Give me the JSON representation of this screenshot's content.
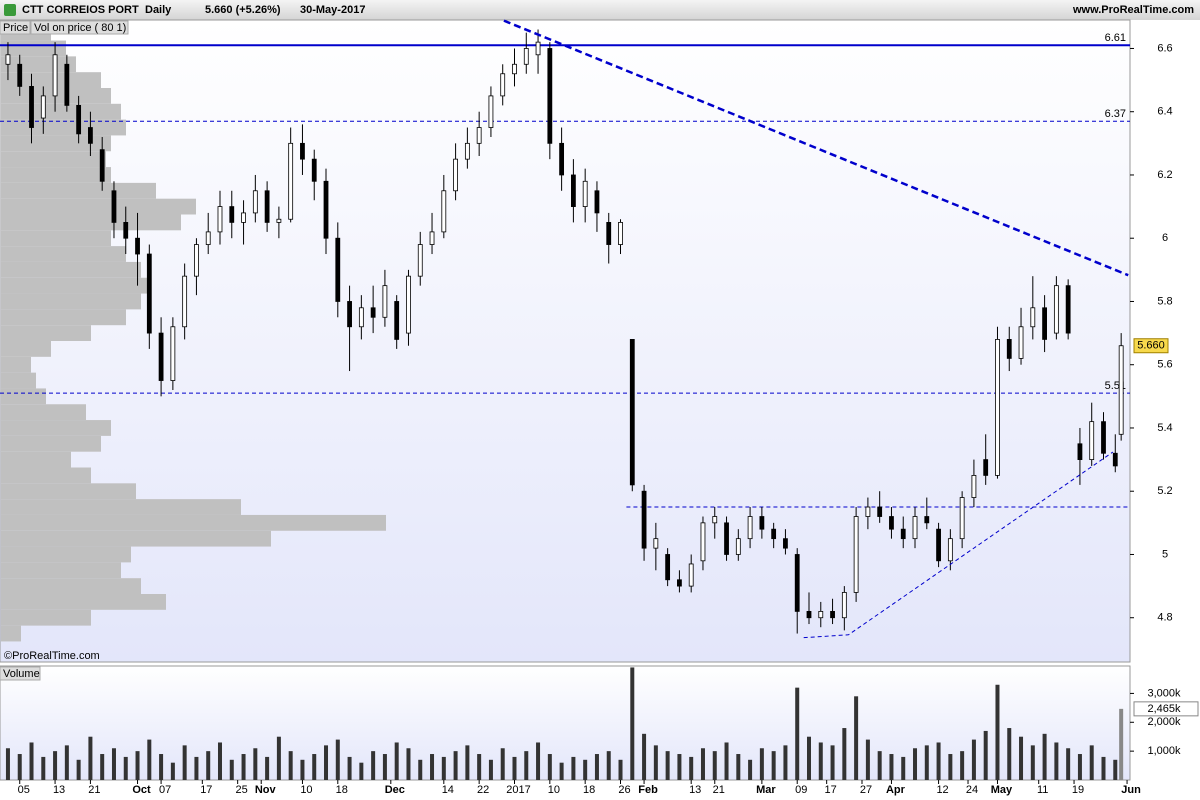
{
  "chart_data": {
    "type": "candlestick",
    "title": "CTT CORREIOS PORT",
    "period": "Daily",
    "change": "5.660 (+5.26%)",
    "date": "30-May-2017",
    "source": "www.ProRealTime.com",
    "panel_label": "Price",
    "copyright": "©ProRealTime.com",
    "xlim": [
      -1.35,
      190.5
    ],
    "xticks": [
      {
        "value": 2,
        "label": "05"
      },
      {
        "value": 8,
        "label": "13"
      },
      {
        "value": 14,
        "label": "21"
      },
      {
        "value": 22,
        "label": "Oct"
      },
      {
        "value": 26,
        "label": "07"
      },
      {
        "value": 33,
        "label": "17"
      },
      {
        "value": 39,
        "label": "25"
      },
      {
        "value": 43,
        "label": "Nov"
      },
      {
        "value": 50,
        "label": "10"
      },
      {
        "value": 56,
        "label": "18"
      },
      {
        "value": 65,
        "label": "Dec"
      },
      {
        "value": 74,
        "label": "14"
      },
      {
        "value": 80,
        "label": "22"
      },
      {
        "value": 86,
        "label": "2017"
      },
      {
        "value": 92,
        "label": "10"
      },
      {
        "value": 98,
        "label": "18"
      },
      {
        "value": 104,
        "label": "26"
      },
      {
        "value": 108,
        "label": "Feb"
      },
      {
        "value": 116,
        "label": "13"
      },
      {
        "value": 120,
        "label": "21"
      },
      {
        "value": 128,
        "label": "Mar"
      },
      {
        "value": 134,
        "label": "09"
      },
      {
        "value": 139,
        "label": "17"
      },
      {
        "value": 145,
        "label": "27"
      },
      {
        "value": 150,
        "label": "Apr"
      },
      {
        "value": 158,
        "label": "12"
      },
      {
        "value": 163,
        "label": "24"
      },
      {
        "value": 168,
        "label": "May"
      },
      {
        "value": 175,
        "label": "11"
      },
      {
        "value": 181,
        "label": "19"
      },
      {
        "value": 190,
        "label": "Jun"
      }
    ],
    "ylim": [
      4.66,
      6.69
    ],
    "yticks": [
      4.8,
      5,
      5.2,
      5.4,
      5.6,
      5.8,
      6,
      6.2,
      6.4,
      6.6
    ],
    "up_color": "#ffffff",
    "down_color": "#000000",
    "candles": [
      [
        0,
        6.55,
        6.62,
        6.5,
        6.58
      ],
      [
        2,
        6.55,
        6.58,
        6.45,
        6.48
      ],
      [
        4,
        6.48,
        6.52,
        6.3,
        6.35
      ],
      [
        6,
        6.38,
        6.48,
        6.33,
        6.45
      ],
      [
        8,
        6.45,
        6.62,
        6.4,
        6.58
      ],
      [
        10,
        6.55,
        6.58,
        6.4,
        6.42
      ],
      [
        12,
        6.42,
        6.45,
        6.3,
        6.33
      ],
      [
        14,
        6.35,
        6.4,
        6.26,
        6.3
      ],
      [
        16,
        6.28,
        6.32,
        6.15,
        6.18
      ],
      [
        18,
        6.15,
        6.18,
        6.0,
        6.05
      ],
      [
        20,
        6.05,
        6.1,
        5.95,
        6.0
      ],
      [
        22,
        6.0,
        6.08,
        5.85,
        5.95
      ],
      [
        24,
        5.95,
        5.98,
        5.65,
        5.7
      ],
      [
        26,
        5.7,
        5.75,
        5.5,
        5.55
      ],
      [
        28,
        5.55,
        5.75,
        5.52,
        5.72
      ],
      [
        30,
        5.72,
        5.92,
        5.68,
        5.88
      ],
      [
        32,
        5.88,
        6.0,
        5.82,
        5.98
      ],
      [
        34,
        5.98,
        6.08,
        5.95,
        6.02
      ],
      [
        36,
        6.02,
        6.15,
        5.98,
        6.1
      ],
      [
        38,
        6.1,
        6.15,
        6.0,
        6.05
      ],
      [
        40,
        6.05,
        6.12,
        5.98,
        6.08
      ],
      [
        42,
        6.08,
        6.2,
        6.05,
        6.15
      ],
      [
        44,
        6.15,
        6.18,
        6.02,
        6.05
      ],
      [
        46,
        6.05,
        6.1,
        6.0,
        6.06
      ],
      [
        48,
        6.06,
        6.35,
        6.05,
        6.3
      ],
      [
        50,
        6.3,
        6.36,
        6.2,
        6.25
      ],
      [
        52,
        6.25,
        6.28,
        6.12,
        6.18
      ],
      [
        54,
        6.18,
        6.22,
        5.95,
        6.0
      ],
      [
        56,
        6.0,
        6.05,
        5.75,
        5.8
      ],
      [
        58,
        5.8,
        5.85,
        5.58,
        5.72
      ],
      [
        60,
        5.72,
        5.82,
        5.68,
        5.78
      ],
      [
        62,
        5.78,
        5.85,
        5.7,
        5.75
      ],
      [
        64,
        5.75,
        5.9,
        5.72,
        5.85
      ],
      [
        66,
        5.8,
        5.82,
        5.65,
        5.68
      ],
      [
        68,
        5.7,
        5.9,
        5.66,
        5.88
      ],
      [
        70,
        5.88,
        6.02,
        5.85,
        5.98
      ],
      [
        72,
        5.98,
        6.08,
        5.95,
        6.02
      ],
      [
        74,
        6.02,
        6.2,
        6.0,
        6.15
      ],
      [
        76,
        6.15,
        6.3,
        6.12,
        6.25
      ],
      [
        78,
        6.25,
        6.35,
        6.22,
        6.3
      ],
      [
        80,
        6.3,
        6.4,
        6.26,
        6.35
      ],
      [
        82,
        6.35,
        6.48,
        6.32,
        6.45
      ],
      [
        84,
        6.45,
        6.55,
        6.42,
        6.52
      ],
      [
        86,
        6.52,
        6.6,
        6.48,
        6.55
      ],
      [
        88,
        6.55,
        6.65,
        6.52,
        6.6
      ],
      [
        90,
        6.58,
        6.66,
        6.52,
        6.62
      ],
      [
        92,
        6.6,
        6.62,
        6.25,
        6.3
      ],
      [
        94,
        6.3,
        6.35,
        6.15,
        6.2
      ],
      [
        96,
        6.2,
        6.25,
        6.05,
        6.1
      ],
      [
        98,
        6.1,
        6.22,
        6.05,
        6.18
      ],
      [
        100,
        6.15,
        6.18,
        6.02,
        6.08
      ],
      [
        102,
        6.05,
        6.08,
        5.92,
        5.98
      ],
      [
        104,
        5.98,
        6.06,
        5.95,
        6.05
      ],
      [
        106,
        5.68,
        5.68,
        5.2,
        5.22
      ],
      [
        108,
        5.2,
        5.22,
        4.98,
        5.02
      ],
      [
        110,
        5.02,
        5.1,
        4.95,
        5.05
      ],
      [
        112,
        5.0,
        5.02,
        4.9,
        4.92
      ],
      [
        114,
        4.92,
        4.95,
        4.88,
        4.9
      ],
      [
        116,
        4.9,
        5.0,
        4.88,
        4.97
      ],
      [
        118,
        4.98,
        5.12,
        4.95,
        5.1
      ],
      [
        120,
        5.1,
        5.15,
        5.05,
        5.12
      ],
      [
        122,
        5.1,
        5.12,
        4.98,
        5.0
      ],
      [
        124,
        5.0,
        5.08,
        4.98,
        5.05
      ],
      [
        126,
        5.05,
        5.15,
        5.02,
        5.12
      ],
      [
        128,
        5.12,
        5.15,
        5.05,
        5.08
      ],
      [
        130,
        5.08,
        5.1,
        5.02,
        5.05
      ],
      [
        132,
        5.05,
        5.08,
        5.0,
        5.02
      ],
      [
        134,
        5.0,
        5.02,
        4.75,
        4.82
      ],
      [
        136,
        4.82,
        4.88,
        4.78,
        4.8
      ],
      [
        138,
        4.8,
        4.85,
        4.77,
        4.82
      ],
      [
        140,
        4.82,
        4.86,
        4.78,
        4.8
      ],
      [
        142,
        4.8,
        4.9,
        4.76,
        4.88
      ],
      [
        144,
        4.88,
        5.15,
        4.85,
        5.12
      ],
      [
        146,
        5.12,
        5.18,
        5.08,
        5.15
      ],
      [
        148,
        5.15,
        5.2,
        5.1,
        5.12
      ],
      [
        150,
        5.12,
        5.15,
        5.05,
        5.08
      ],
      [
        152,
        5.08,
        5.12,
        5.02,
        5.05
      ],
      [
        154,
        5.05,
        5.15,
        5.02,
        5.12
      ],
      [
        156,
        5.12,
        5.18,
        5.08,
        5.1
      ],
      [
        158,
        5.08,
        5.1,
        4.96,
        4.98
      ],
      [
        160,
        4.98,
        5.08,
        4.95,
        5.05
      ],
      [
        162,
        5.05,
        5.2,
        5.02,
        5.18
      ],
      [
        164,
        5.18,
        5.3,
        5.15,
        5.25
      ],
      [
        166,
        5.3,
        5.38,
        5.22,
        5.25
      ],
      [
        168,
        5.25,
        5.72,
        5.24,
        5.68
      ],
      [
        170,
        5.68,
        5.72,
        5.58,
        5.62
      ],
      [
        172,
        5.62,
        5.78,
        5.6,
        5.72
      ],
      [
        174,
        5.72,
        5.88,
        5.68,
        5.78
      ],
      [
        176,
        5.78,
        5.82,
        5.64,
        5.68
      ],
      [
        178,
        5.7,
        5.88,
        5.68,
        5.85
      ],
      [
        180,
        5.85,
        5.87,
        5.68,
        5.7
      ],
      [
        182,
        5.35,
        5.4,
        5.22,
        5.3
      ],
      [
        184,
        5.3,
        5.48,
        5.28,
        5.42
      ],
      [
        186,
        5.42,
        5.45,
        5.3,
        5.32
      ],
      [
        188,
        5.32,
        5.38,
        5.26,
        5.28
      ],
      [
        189,
        5.38,
        5.7,
        5.36,
        5.66
      ]
    ],
    "last_price": {
      "value": 5.66,
      "label": "5.660"
    },
    "hlines": [
      {
        "value": 6.61,
        "dashed": false,
        "labeled": true
      },
      {
        "value": 6.37,
        "dashed": true,
        "labeled": true
      },
      {
        "value": 5.51,
        "dashed": true,
        "labeled": true
      },
      {
        "value": 5.15,
        "dashed": true,
        "labeled": false,
        "start": 105
      }
    ],
    "line_color": "#0000cc",
    "trendlines": [
      {
        "points": [
          [
            84.2,
            6.688
          ],
          [
            190.2,
            5.883
          ]
        ],
        "width": 2.5
      },
      {
        "points": [
          [
            135.1,
            4.737
          ],
          [
            142.7,
            4.746
          ],
          [
            187.6,
            5.324
          ]
        ],
        "width": 1
      }
    ],
    "profile": {
      "label": "Vol on price ( 80 1)",
      "color": "#c0c0c0",
      "step": 0.05,
      "levels": [
        6.65,
        6.6,
        6.55,
        6.5,
        6.45,
        6.4,
        6.35,
        6.3,
        6.25,
        6.2,
        6.15,
        6.1,
        6.05,
        6.0,
        5.95,
        5.9,
        5.85,
        5.8,
        5.75,
        5.7,
        5.65,
        5.6,
        5.55,
        5.5,
        5.45,
        5.4,
        5.35,
        5.3,
        5.25,
        5.2,
        5.15,
        5.1,
        5.05,
        5.0,
        4.95,
        4.9,
        4.85,
        4.8,
        4.75
      ],
      "values": [
        50,
        65,
        75,
        100,
        110,
        120,
        125,
        110,
        105,
        110,
        155,
        195,
        180,
        110,
        125,
        140,
        150,
        140,
        125,
        90,
        50,
        30,
        35,
        45,
        85,
        110,
        100,
        70,
        90,
        135,
        240,
        385,
        270,
        130,
        120,
        140,
        165,
        90,
        20
      ]
    },
    "volume": {
      "label": "Volume",
      "color": "#333333",
      "last_color": "#888888",
      "ylim": [
        0,
        3950
      ],
      "yticks": [
        {
          "value": 1000,
          "label": "1,000k"
        },
        {
          "value": 2000,
          "label": "2,000k"
        },
        {
          "value": 3000,
          "label": "3,000k"
        }
      ],
      "last": {
        "value": 2465,
        "label": "2,465k"
      },
      "values": [
        1100,
        900,
        1300,
        800,
        1000,
        1200,
        700,
        1500,
        900,
        1100,
        800,
        1000,
        1400,
        900,
        600,
        1200,
        800,
        1000,
        1300,
        700,
        900,
        1100,
        800,
        1500,
        1000,
        700,
        900,
        1200,
        1400,
        800,
        600,
        1000,
        900,
        1300,
        1100,
        700,
        900,
        800,
        1000,
        1200,
        900,
        700,
        1100,
        800,
        1000,
        1300,
        900,
        600,
        800,
        700,
        900,
        1000,
        700,
        3900,
        1600,
        1200,
        1000,
        900,
        800,
        1100,
        1000,
        1300,
        900,
        700,
        1100,
        1000,
        1200,
        3200,
        1500,
        1300,
        1200,
        1800,
        2900,
        1400,
        1000,
        900,
        800,
        1100,
        1200,
        1300,
        900,
        1000,
        1400,
        1700,
        3300,
        1800,
        1500,
        1200,
        1600,
        1300,
        1100,
        900,
        1200,
        800,
        700,
        2465
      ]
    }
  }
}
